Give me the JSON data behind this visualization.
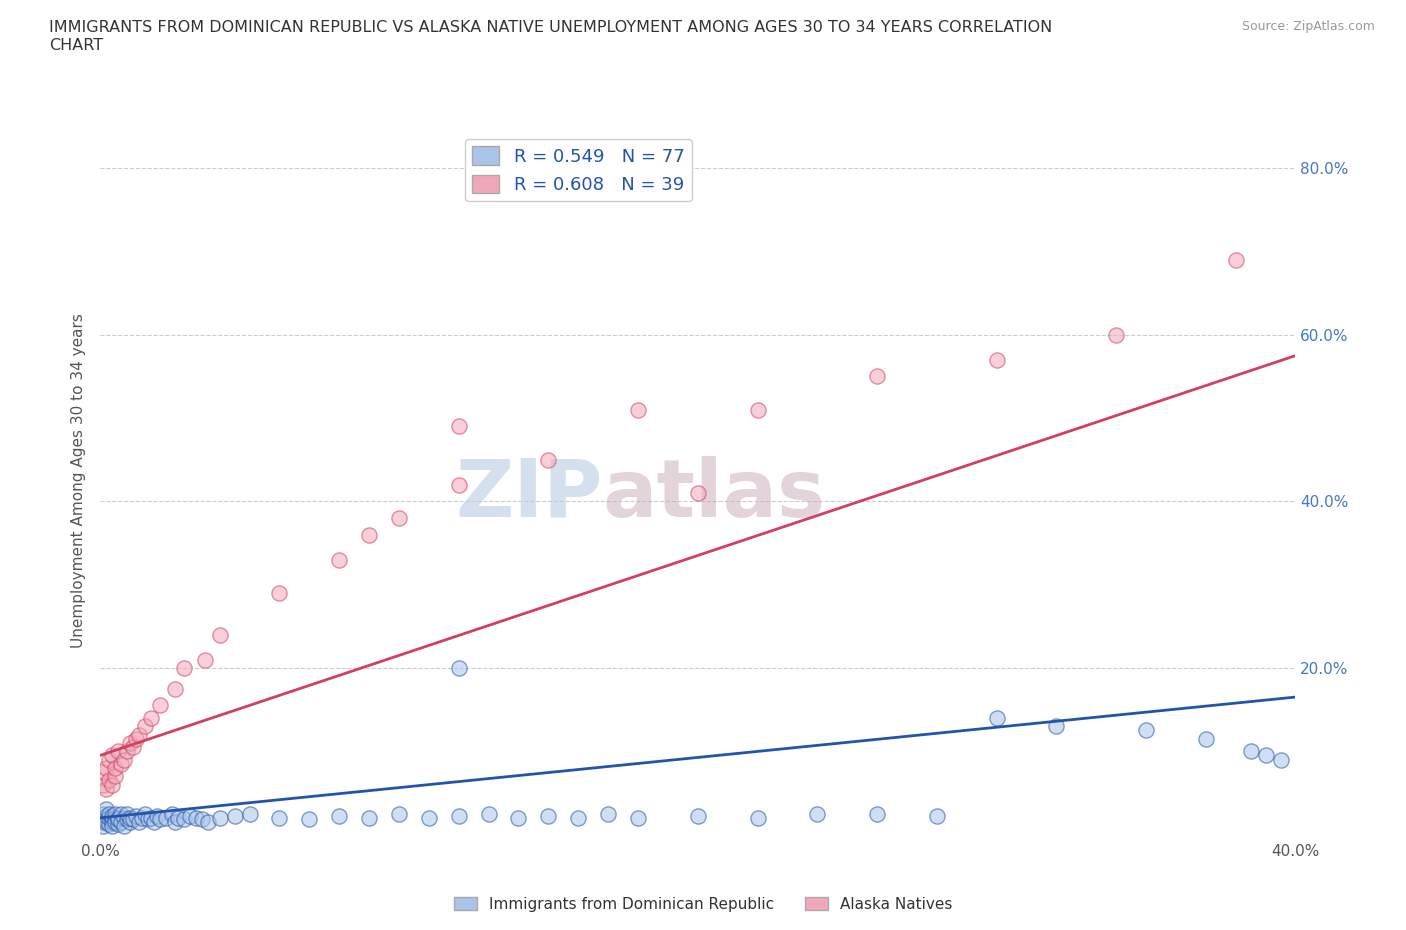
{
  "title": "IMMIGRANTS FROM DOMINICAN REPUBLIC VS ALASKA NATIVE UNEMPLOYMENT AMONG AGES 30 TO 34 YEARS CORRELATION\nCHART",
  "source": "Source: ZipAtlas.com",
  "ylabel": "Unemployment Among Ages 30 to 34 years",
  "ytick_labels": [
    "80.0%",
    "60.0%",
    "40.0%",
    "20.0%"
  ],
  "ytick_values": [
    0.8,
    0.6,
    0.4,
    0.2
  ],
  "blue_color": "#aac4e8",
  "pink_color": "#f0a8b8",
  "blue_line_color": "#2255aa",
  "pink_line_color": "#d04060",
  "blue_R": 0.549,
  "blue_N": 77,
  "pink_R": 0.608,
  "pink_N": 39,
  "watermark_zip": "ZIP",
  "watermark_atlas": "atlas",
  "background_color": "#ffffff",
  "grid_color": "#cccccc",
  "xlim": [
    0.0,
    0.4
  ],
  "ylim": [
    0.0,
    0.85
  ],
  "blue_line_x": [
    0.0,
    0.4
  ],
  "blue_line_y": [
    0.02,
    0.165
  ],
  "pink_line_x": [
    0.0,
    0.4
  ],
  "pink_line_y": [
    0.095,
    0.575
  ],
  "blue_scatter_x": [
    0.001,
    0.001,
    0.001,
    0.001,
    0.002,
    0.002,
    0.002,
    0.002,
    0.003,
    0.003,
    0.003,
    0.004,
    0.004,
    0.004,
    0.004,
    0.005,
    0.005,
    0.005,
    0.006,
    0.006,
    0.006,
    0.007,
    0.007,
    0.008,
    0.008,
    0.009,
    0.009,
    0.01,
    0.01,
    0.011,
    0.012,
    0.013,
    0.014,
    0.015,
    0.016,
    0.017,
    0.018,
    0.019,
    0.02,
    0.022,
    0.024,
    0.025,
    0.026,
    0.028,
    0.03,
    0.032,
    0.034,
    0.036,
    0.04,
    0.045,
    0.05,
    0.06,
    0.07,
    0.08,
    0.09,
    0.1,
    0.11,
    0.12,
    0.13,
    0.14,
    0.15,
    0.16,
    0.17,
    0.18,
    0.2,
    0.22,
    0.24,
    0.26,
    0.28,
    0.3,
    0.32,
    0.35,
    0.37,
    0.385,
    0.39,
    0.395,
    0.12
  ],
  "blue_scatter_y": [
    0.02,
    0.015,
    0.025,
    0.01,
    0.018,
    0.022,
    0.015,
    0.03,
    0.012,
    0.02,
    0.025,
    0.015,
    0.018,
    0.01,
    0.022,
    0.02,
    0.015,
    0.025,
    0.012,
    0.02,
    0.018,
    0.025,
    0.015,
    0.02,
    0.01,
    0.018,
    0.025,
    0.015,
    0.02,
    0.018,
    0.022,
    0.015,
    0.02,
    0.025,
    0.018,
    0.02,
    0.015,
    0.022,
    0.018,
    0.02,
    0.025,
    0.015,
    0.02,
    0.018,
    0.022,
    0.02,
    0.018,
    0.015,
    0.02,
    0.022,
    0.025,
    0.02,
    0.018,
    0.022,
    0.02,
    0.025,
    0.02,
    0.022,
    0.025,
    0.02,
    0.022,
    0.02,
    0.025,
    0.02,
    0.022,
    0.02,
    0.025,
    0.025,
    0.022,
    0.14,
    0.13,
    0.125,
    0.115,
    0.1,
    0.095,
    0.09,
    0.2
  ],
  "pink_scatter_x": [
    0.001,
    0.001,
    0.002,
    0.002,
    0.003,
    0.003,
    0.004,
    0.004,
    0.005,
    0.005,
    0.006,
    0.007,
    0.008,
    0.009,
    0.01,
    0.011,
    0.012,
    0.013,
    0.015,
    0.017,
    0.02,
    0.025,
    0.028,
    0.035,
    0.04,
    0.06,
    0.08,
    0.09,
    0.1,
    0.12,
    0.15,
    0.18,
    0.22,
    0.26,
    0.3,
    0.34,
    0.38,
    0.12,
    0.2
  ],
  "pink_scatter_y": [
    0.06,
    0.075,
    0.055,
    0.08,
    0.065,
    0.09,
    0.06,
    0.095,
    0.07,
    0.08,
    0.1,
    0.085,
    0.09,
    0.1,
    0.11,
    0.105,
    0.115,
    0.12,
    0.13,
    0.14,
    0.155,
    0.175,
    0.2,
    0.21,
    0.24,
    0.29,
    0.33,
    0.36,
    0.38,
    0.42,
    0.45,
    0.51,
    0.51,
    0.55,
    0.57,
    0.6,
    0.69,
    0.49,
    0.41
  ]
}
